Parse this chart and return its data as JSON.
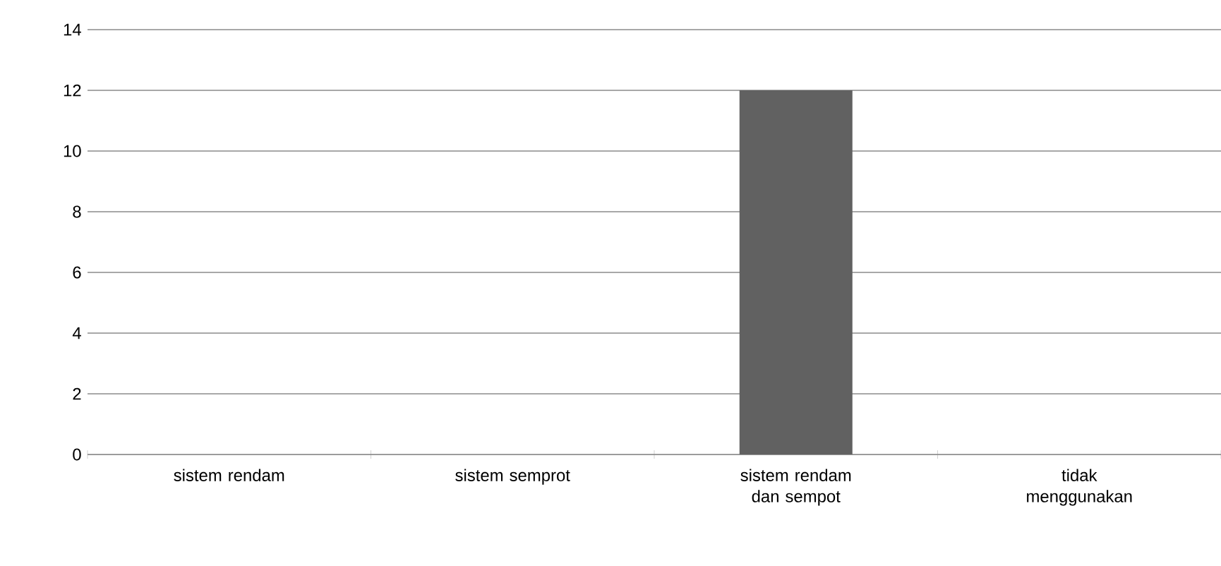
{
  "chart_data": {
    "type": "bar",
    "categories": [
      "sistem rendam",
      "sistem semprot",
      "sistem rendam dan sempot",
      "tidak menggunakan"
    ],
    "values": [
      0,
      0,
      12,
      0
    ],
    "color": "#616161",
    "ylim": [
      0,
      14
    ],
    "yticks": [
      0,
      2,
      4,
      6,
      8,
      10,
      12,
      14
    ],
    "grid": "y"
  }
}
